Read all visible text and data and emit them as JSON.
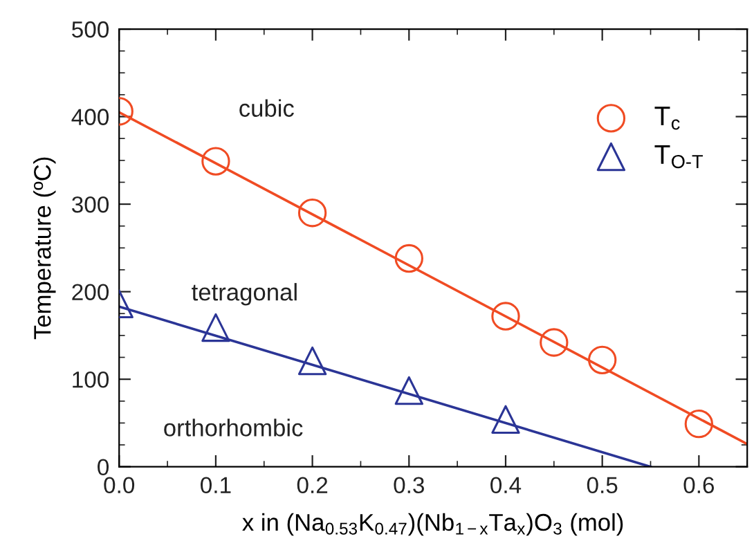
{
  "chart_data": {
    "type": "scatter",
    "xlabel": "x in (Na$_{0.53}$K$_{0.47}$)(Nb$_{1−x}$Ta$_{x}$)O$_{3}$ (mol)",
    "ylabel": "Temperature (ºC)",
    "annotations": [
      "cubic",
      "tetragonal",
      "orthorhombic"
    ],
    "series": [
      {
        "name": "T$_{c}$",
        "marker": "circle",
        "color": "#f04b23",
        "x": [
          0,
          0.1,
          0.2,
          0.3,
          0.4,
          0.45,
          0.5,
          0.6
        ],
        "values": [
          406,
          349,
          290,
          238,
          172,
          142,
          122,
          49
        ]
      },
      {
        "name": "T$_{O‐T}$",
        "marker": "triangle",
        "color": "#2b3596",
        "x": [
          0,
          0.1,
          0.2,
          0.3,
          0.4
        ],
        "values": [
          186,
          159,
          121,
          87,
          54
        ]
      },
      {
        "type": "line",
        "color": "#f04b23",
        "x": [
          0,
          0.65
        ],
        "values": [
          405,
          26
        ]
      },
      {
        "type": "line",
        "color": "#2b3596",
        "x": [
          0,
          0.55
        ],
        "values": [
          183,
          0
        ]
      }
    ],
    "xlim": [
      0,
      0.65
    ],
    "ylim": [
      0,
      500
    ],
    "xticks": [
      {
        "value": 0,
        "label": "0.0"
      },
      0.1,
      0.2,
      0.3,
      0.4,
      0.5,
      0.6
    ],
    "yticks": [
      0,
      100,
      200,
      300,
      400,
      500
    ],
    "grid": false,
    "legend": "top right"
  }
}
